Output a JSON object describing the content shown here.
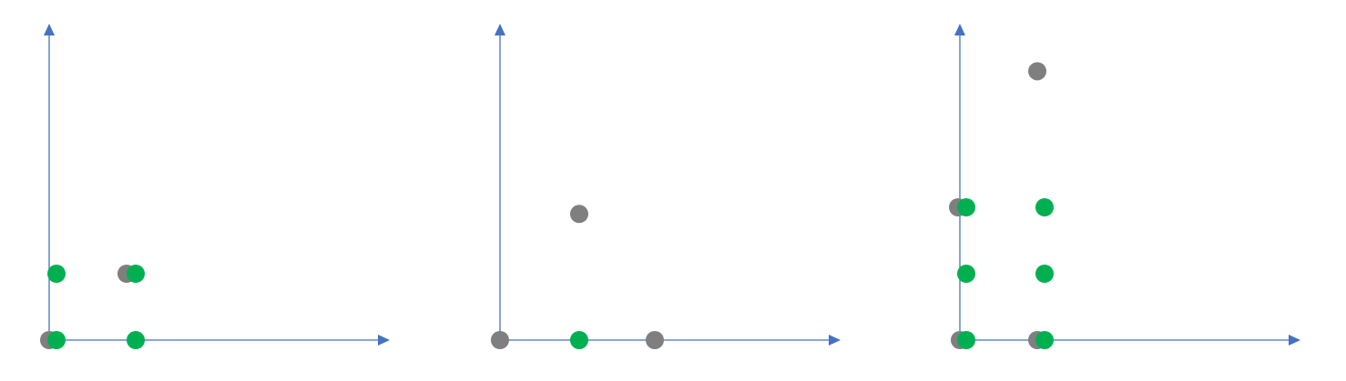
{
  "colors": {
    "axis": "#4472C4",
    "background": "#FFFFFF",
    "gray_point": "#7F7F7F",
    "green_point": "#00B050"
  },
  "chart_data": [
    {
      "type": "scatter",
      "grid": false,
      "series": [
        {
          "color": "gray_point",
          "points": [
            [
              0.0,
              0.0
            ],
            [
              0.85,
              1.0
            ]
          ]
        },
        {
          "color": "green_point",
          "points": [
            [
              0.08,
              0.0
            ],
            [
              0.08,
              1.0
            ],
            [
              0.95,
              1.0
            ],
            [
              0.95,
              0.0
            ]
          ]
        }
      ]
    },
    {
      "type": "scatter",
      "grid": false,
      "series": [
        {
          "color": "gray_point",
          "points": [
            [
              0.0,
              0.0
            ],
            [
              0.87,
              1.9
            ],
            [
              1.7,
              0.0
            ]
          ]
        },
        {
          "color": "green_point",
          "points": [
            [
              0.87,
              0.0
            ]
          ]
        }
      ]
    },
    {
      "type": "scatter",
      "grid": false,
      "series": [
        {
          "color": "gray_point",
          "points": [
            [
              0.0,
              0.0
            ],
            [
              0.85,
              0.0
            ],
            [
              -0.02,
              2.0
            ],
            [
              0.85,
              4.05
            ]
          ]
        },
        {
          "color": "green_point",
          "points": [
            [
              0.07,
              0.0
            ],
            [
              0.07,
              1.0
            ],
            [
              0.07,
              2.0
            ],
            [
              0.93,
              0.0
            ],
            [
              0.93,
              1.0
            ],
            [
              0.93,
              2.0
            ]
          ]
        }
      ]
    }
  ]
}
